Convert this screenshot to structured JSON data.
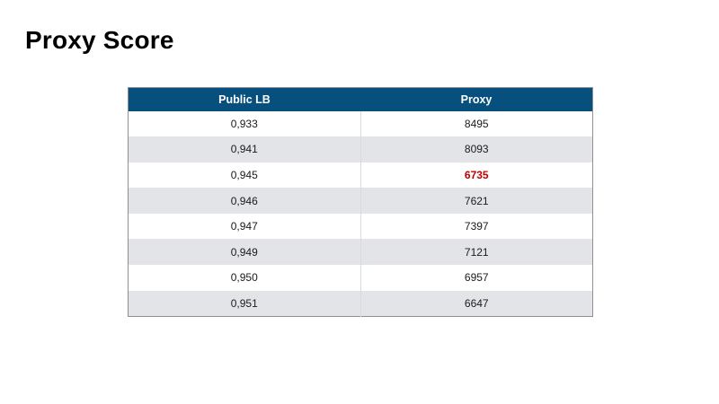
{
  "slide": {
    "title": "Proxy Score"
  },
  "chart_data": {
    "type": "table",
    "title": "Proxy Score",
    "columns": [
      "Public LB",
      "Proxy"
    ],
    "rows": [
      [
        "0,933",
        "8495"
      ],
      [
        "0,941",
        "8093"
      ],
      [
        "0,945",
        "6735"
      ],
      [
        "0,946",
        "7621"
      ],
      [
        "0,947",
        "7397"
      ],
      [
        "0,949",
        "7121"
      ],
      [
        "0,950",
        "6957"
      ],
      [
        "0,951",
        "6647"
      ]
    ],
    "highlight": {
      "row_index": 2,
      "column": "Proxy",
      "value": "6735",
      "color": "#c00000"
    },
    "layout_hints": {
      "striped_rows": true,
      "header_style": "dark-blue, white bold text",
      "value_alignment": "center"
    }
  },
  "colors": {
    "header_bg": "#07507e",
    "header_text": "#ffffff",
    "row_alt_bg": "#e3e4e8",
    "body_text": "#1a1a1a",
    "highlight_text": "#c00000",
    "outer_border": "#8e9094",
    "column_divider": "#d9dadd",
    "background": "#ffffff",
    "title_text": "#000000"
  }
}
